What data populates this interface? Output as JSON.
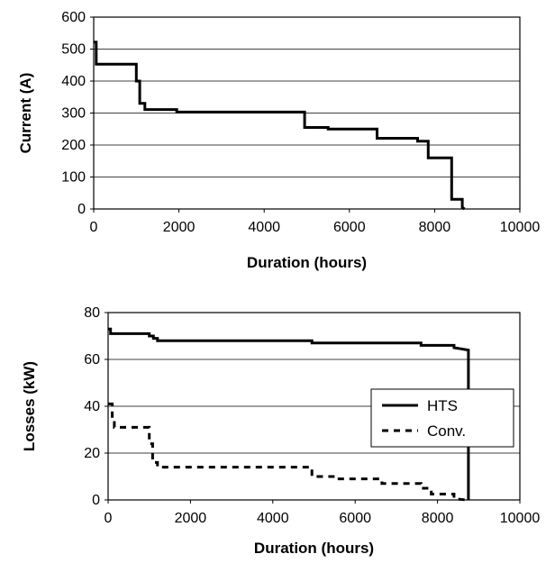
{
  "chart_data": [
    {
      "type": "line",
      "title": "",
      "xlabel": "Duration (hours)",
      "ylabel": "Current (A)",
      "xlim": [
        0,
        10000
      ],
      "ylim": [
        0,
        600
      ],
      "xticks": [
        "0",
        "2000",
        "4000",
        "6000",
        "8000",
        "10000"
      ],
      "yticks": [
        "0",
        "100",
        "200",
        "300",
        "400",
        "500",
        "600"
      ],
      "grid": "horizontal",
      "legend": "none",
      "series": [
        {
          "color": "#000000",
          "style": "solid",
          "x": [
            0,
            60,
            60,
            1000,
            1000,
            1080,
            1080,
            1200,
            1200,
            1950,
            1950,
            4950,
            4950,
            5500,
            5500,
            6650,
            6650,
            7600,
            7600,
            7850,
            7850,
            8400,
            8400,
            8650,
            8650,
            8700
          ],
          "y": [
            522,
            522,
            453,
            453,
            400,
            400,
            330,
            330,
            311,
            311,
            303,
            303,
            255,
            255,
            250,
            250,
            221,
            221,
            212,
            212,
            160,
            160,
            30,
            30,
            5,
            0
          ]
        }
      ]
    },
    {
      "type": "line",
      "title": "",
      "xlabel": "Duration (hours)",
      "ylabel": "Losses (kW)",
      "xlim": [
        0,
        10000
      ],
      "ylim": [
        0,
        80
      ],
      "xticks": [
        "0",
        "2000",
        "4000",
        "6000",
        "8000",
        "10000"
      ],
      "yticks": [
        "0",
        "20",
        "40",
        "60",
        "80"
      ],
      "grid": "horizontal",
      "legend": "right",
      "series": [
        {
          "name": "HTS",
          "color": "#000000",
          "style": "solid",
          "x": [
            0,
            60,
            60,
            1000,
            1000,
            1100,
            1100,
            1200,
            1200,
            4950,
            4950,
            7600,
            7600,
            8400,
            8400,
            8750,
            8750
          ],
          "y": [
            73,
            73,
            71,
            71,
            70,
            70,
            69,
            69,
            68,
            68,
            67,
            67,
            66,
            66,
            65,
            64,
            0
          ]
        },
        {
          "name": "Conv.",
          "color": "#000000",
          "style": "dashed",
          "x": [
            0,
            100,
            100,
            150,
            150,
            1000,
            1000,
            1080,
            1080,
            1200,
            1200,
            4950,
            4950,
            5500,
            5500,
            6650,
            6650,
            7600,
            7600,
            7850,
            7850,
            8400,
            8400,
            8700
          ],
          "y": [
            41,
            41,
            34,
            34,
            31,
            31,
            24,
            24,
            16,
            16,
            14,
            14,
            10,
            10,
            9,
            9,
            7,
            7,
            5,
            5,
            2.5,
            2.5,
            0.5,
            0
          ]
        }
      ]
    }
  ]
}
